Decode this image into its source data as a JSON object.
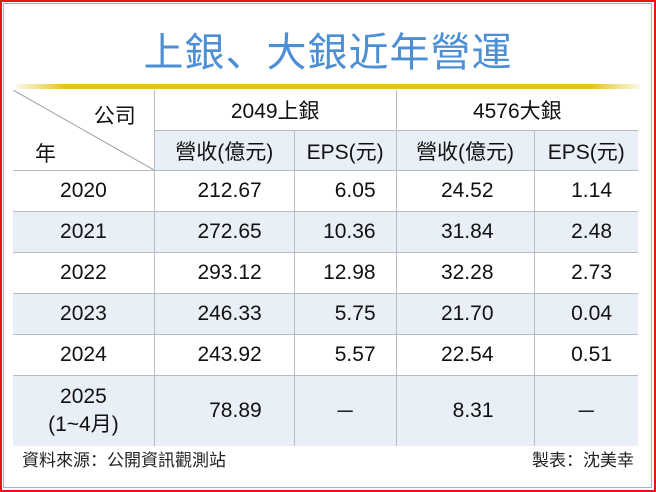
{
  "title": "上銀、大銀近年營運",
  "header": {
    "corner_company": "公司",
    "corner_year": "年",
    "groups": [
      "2049上銀",
      "4576大銀"
    ],
    "subheaders": [
      "營收(億元)",
      "EPS(元)",
      "營收(億元)",
      "EPS(元)"
    ]
  },
  "chart_data": {
    "type": "table",
    "title": "上銀、大銀近年營運",
    "columns": [
      "年",
      "2049上銀 營收(億元)",
      "2049上銀 EPS(元)",
      "4576大銀 營收(億元)",
      "4576大銀 EPS(元)"
    ],
    "rows": [
      {
        "year": "2020",
        "year_note": "",
        "cells": [
          "212.67",
          "6.05",
          "24.52",
          "1.14"
        ]
      },
      {
        "year": "2021",
        "year_note": "",
        "cells": [
          "272.65",
          "10.36",
          "31.84",
          "2.48"
        ]
      },
      {
        "year": "2022",
        "year_note": "",
        "cells": [
          "293.12",
          "12.98",
          "32.28",
          "2.73"
        ]
      },
      {
        "year": "2023",
        "year_note": "",
        "cells": [
          "246.33",
          "5.75",
          "21.70",
          "0.04"
        ]
      },
      {
        "year": "2024",
        "year_note": "",
        "cells": [
          "243.92",
          "5.57",
          "22.54",
          "0.51"
        ]
      },
      {
        "year": "2025",
        "year_note": "(1~4月)",
        "cells": [
          "78.89",
          "－",
          "8.31",
          "－"
        ]
      }
    ]
  },
  "footer": {
    "source": "資料來源：公開資訊觀測站",
    "maker": "製表：沈美幸"
  }
}
